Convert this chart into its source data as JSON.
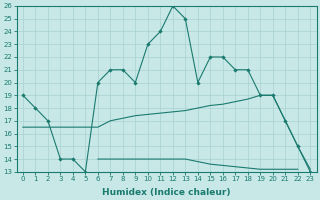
{
  "xlabel": "Humidex (Indice chaleur)",
  "x": [
    0,
    1,
    2,
    3,
    4,
    5,
    6,
    7,
    8,
    9,
    10,
    11,
    12,
    13,
    14,
    15,
    16,
    17,
    18,
    19,
    20,
    21,
    22,
    23
  ],
  "main_line": [
    19,
    18,
    17,
    14,
    14,
    13,
    20,
    21,
    21,
    20,
    23,
    24,
    26,
    25,
    20,
    22,
    22,
    21,
    21,
    19,
    19,
    17,
    15,
    13
  ],
  "upper_line": [
    16.5,
    16.5,
    16.5,
    16.5,
    16.5,
    16.5,
    16.5,
    17.0,
    17.2,
    17.4,
    17.5,
    17.6,
    17.7,
    17.8,
    18.0,
    18.2,
    18.3,
    18.5,
    18.7,
    19.0,
    19.0,
    17.0,
    15.0,
    13.2
  ],
  "lower_line": [
    null,
    null,
    null,
    null,
    null,
    null,
    14.0,
    14.0,
    14.0,
    14.0,
    14.0,
    14.0,
    14.0,
    14.0,
    13.8,
    13.6,
    13.5,
    13.4,
    13.3,
    13.2,
    13.2,
    13.2,
    13.2,
    null
  ],
  "ylim": [
    13,
    26
  ],
  "yticks": [
    13,
    14,
    15,
    16,
    17,
    18,
    19,
    20,
    21,
    22,
    23,
    24,
    25,
    26
  ],
  "color": "#1a7a6e",
  "bg_color": "#c8e8e8",
  "grid_color": "#a8d0d0"
}
